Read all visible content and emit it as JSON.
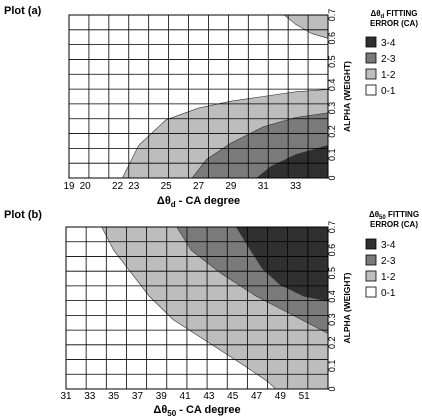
{
  "chart_data": [
    {
      "type": "contour",
      "title": "Plot (a)",
      "xlabel": "Δθd  -  CA degree",
      "ylabel": "ALPHA (WEIGHT)",
      "x_ticks": [
        19,
        20,
        22,
        23,
        25,
        27,
        29,
        31,
        33
      ],
      "x_tick_labels": [
        "19",
        "20",
        "22",
        "23",
        "25",
        "27",
        "29",
        "31",
        "33"
      ],
      "y_ticks": [
        0,
        0.1,
        0.2,
        0.3,
        0.4,
        0.5,
        0.6,
        0.7
      ],
      "y_tick_labels": [
        "0",
        "0.1",
        "0.2",
        "0.3",
        "0.4",
        "0.5",
        "0.6",
        "0.7"
      ],
      "xlim": [
        19,
        35
      ],
      "ylim": [
        0,
        0.7
      ],
      "legend": {
        "title_line1": "Δθd FITTING",
        "title_line2": "ERROR  (CA)",
        "placement": "right",
        "entries": [
          {
            "label": "3-4",
            "color": "#303030"
          },
          {
            "label": "2-3",
            "color": "#7a7a7a"
          },
          {
            "label": "1-2",
            "color": "#bdbdbd"
          },
          {
            "label": "0-1",
            "color": "#ffffff"
          }
        ]
      },
      "regions": [
        {
          "level": "1-2",
          "color": "#bdbdbd",
          "polygon": [
            [
              22.3,
              0
            ],
            [
              23.3,
              0.14
            ],
            [
              25,
              0.25
            ],
            [
              27,
              0.3
            ],
            [
              29,
              0.33
            ],
            [
              31,
              0.35
            ],
            [
              33,
              0.37
            ],
            [
              35,
              0.38
            ],
            [
              35,
              0
            ]
          ]
        },
        {
          "level": "2-3",
          "color": "#7a7a7a",
          "polygon": [
            [
              26.6,
              0
            ],
            [
              27.5,
              0.08
            ],
            [
              29,
              0.15
            ],
            [
              31,
              0.22
            ],
            [
              33,
              0.26
            ],
            [
              35,
              0.28
            ],
            [
              35,
              0
            ]
          ]
        },
        {
          "level": "3-4",
          "color": "#303030",
          "polygon": [
            [
              30.6,
              0
            ],
            [
              31.5,
              0.05
            ],
            [
              33,
              0.1
            ],
            [
              35,
              0.14
            ],
            [
              35,
              0
            ]
          ]
        },
        {
          "level": "1-2",
          "color": "#bdbdbd",
          "polygon": [
            [
              32.3,
              0.7
            ],
            [
              33,
              0.66
            ],
            [
              34,
              0.62
            ],
            [
              35,
              0.6
            ],
            [
              35,
              0.7
            ]
          ]
        }
      ]
    },
    {
      "type": "contour",
      "title": "Plot (b)",
      "xlabel": "Δθ50  -  CA degree",
      "ylabel": "ALPHA (WEIGHT)",
      "x_ticks": [
        31,
        33,
        35,
        37,
        39,
        41,
        43,
        45,
        47,
        49,
        51
      ],
      "x_tick_labels": [
        "31",
        "33",
        "35",
        "37",
        "39",
        "41",
        "43",
        "45",
        "47",
        "49",
        "51"
      ],
      "y_ticks": [
        0,
        0.1,
        0.2,
        0.3,
        0.4,
        0.5,
        0.6,
        0.7
      ],
      "y_tick_labels": [
        "0",
        "0.1",
        "0.2",
        "0.3",
        "0.4",
        "0.5",
        "0.6",
        "0.7"
      ],
      "xlim": [
        31,
        53
      ],
      "ylim": [
        0,
        0.7
      ],
      "legend": {
        "title_line1": "Δθ50 FITTING",
        "title_line2": "ERROR  (CA)",
        "placement": "right",
        "entries": [
          {
            "label": "3-4",
            "color": "#303030"
          },
          {
            "label": "2-3",
            "color": "#7a7a7a"
          },
          {
            "label": "1-2",
            "color": "#bdbdbd"
          },
          {
            "label": "0-1",
            "color": "#ffffff"
          }
        ]
      },
      "regions": [
        {
          "level": "1-2",
          "color": "#bdbdbd",
          "polygon": [
            [
              34,
              0.7
            ],
            [
              35,
              0.6
            ],
            [
              36.5,
              0.5
            ],
            [
              38,
              0.4
            ],
            [
              40,
              0.3
            ],
            [
              43,
              0.2
            ],
            [
              46,
              0.1
            ],
            [
              48,
              0.03
            ],
            [
              48.6,
              0
            ],
            [
              53,
              0
            ],
            [
              53,
              0.7
            ]
          ]
        },
        {
          "level": "2-3",
          "color": "#7a7a7a",
          "polygon": [
            [
              40.3,
              0.7
            ],
            [
              41.5,
              0.6
            ],
            [
              44,
              0.5
            ],
            [
              47,
              0.4
            ],
            [
              50,
              0.32
            ],
            [
              53,
              0.24
            ],
            [
              53,
              0.7
            ]
          ]
        },
        {
          "level": "3-4",
          "color": "#303030",
          "polygon": [
            [
              45.3,
              0.7
            ],
            [
              46.5,
              0.6
            ],
            [
              47.5,
              0.52
            ],
            [
              49,
              0.45
            ],
            [
              51,
              0.4
            ],
            [
              53,
              0.38
            ],
            [
              53,
              0.7
            ]
          ]
        }
      ]
    }
  ]
}
